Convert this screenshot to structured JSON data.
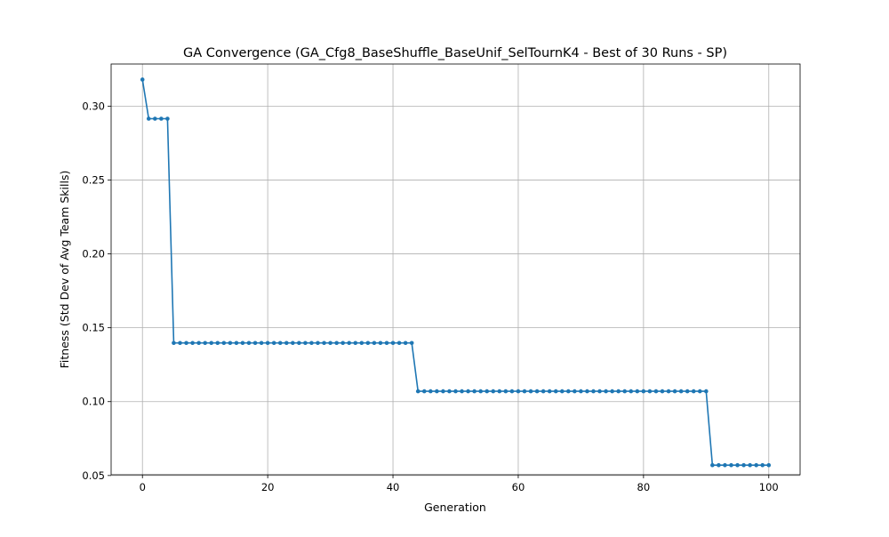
{
  "chart_data": {
    "type": "line",
    "title": "GA Convergence (GA_Cfg8_BaseShuffle_BaseUnif_SelTournK4 - Best of 30 Runs - SP)",
    "xlabel": "Generation",
    "ylabel": "Fitness (Std Dev of Avg Team Skills)",
    "xlim": [
      -5,
      105
    ],
    "ylim": [
      0.0505,
      0.3285
    ],
    "xticks": [
      0,
      20,
      40,
      60,
      80,
      100
    ],
    "xtick_labels": [
      "0",
      "20",
      "40",
      "60",
      "80",
      "100"
    ],
    "yticks": [
      0.05,
      0.1,
      0.15,
      0.2,
      0.25,
      0.3
    ],
    "ytick_labels": [
      "0.05",
      "0.10",
      "0.15",
      "0.20",
      "0.25",
      "0.30"
    ],
    "grid": true,
    "legend": false,
    "marker": "circle",
    "series": [
      {
        "color": "#1f77b4",
        "segments": [
          {
            "x_start": 0,
            "x_end": 0,
            "y": 0.318
          },
          {
            "x_start": 1,
            "x_end": 4,
            "y": 0.2915
          },
          {
            "x_start": 5,
            "x_end": 43,
            "y": 0.1397
          },
          {
            "x_start": 44,
            "x_end": 90,
            "y": 0.107
          },
          {
            "x_start": 91,
            "x_end": 100,
            "y": 0.057
          }
        ]
      }
    ]
  }
}
